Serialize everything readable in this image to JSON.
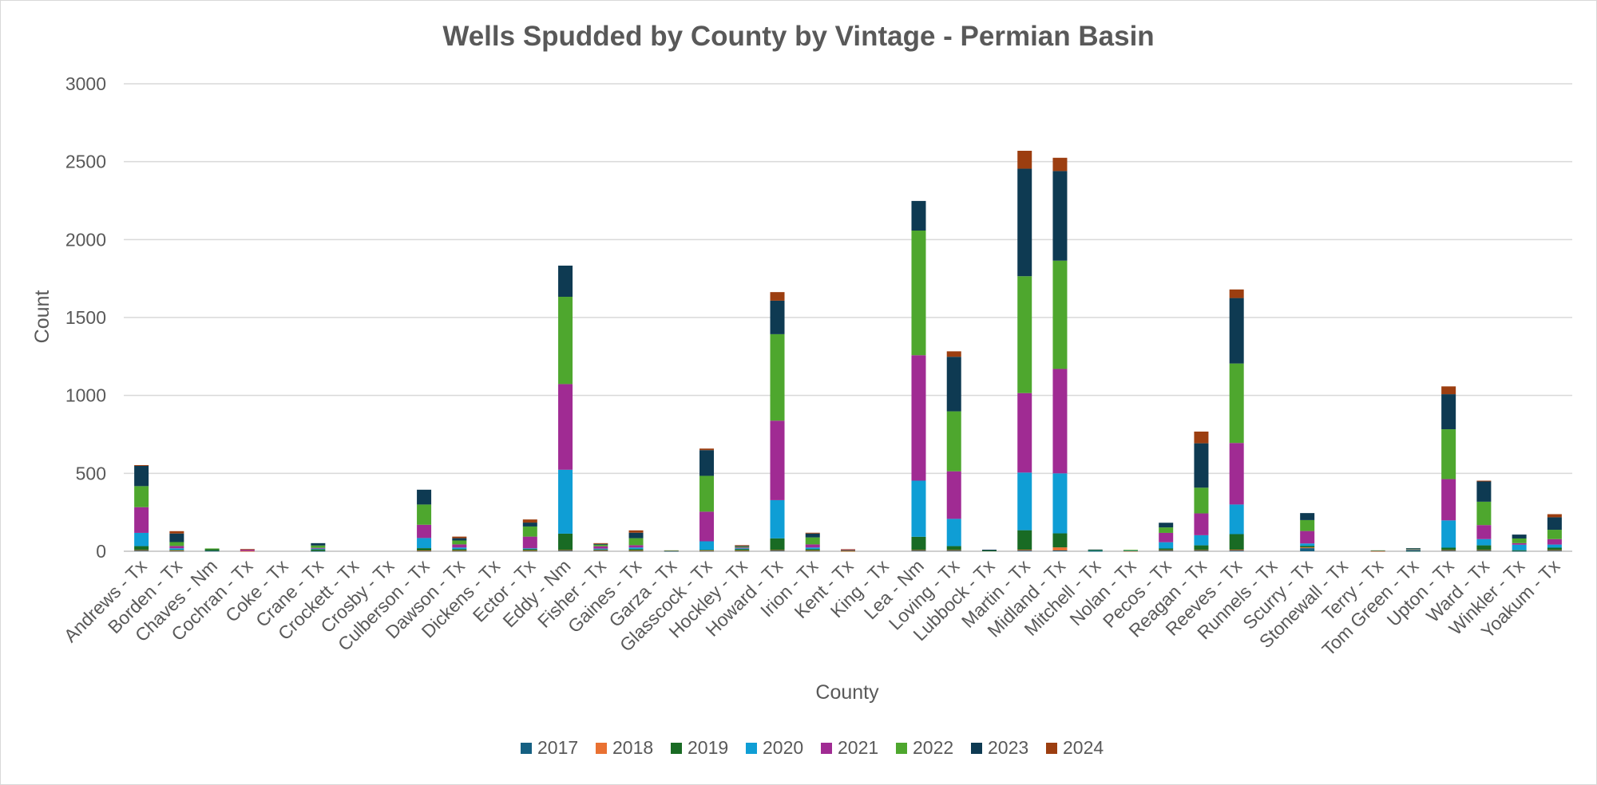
{
  "chart_data": {
    "type": "bar",
    "stacked": true,
    "title": "Wells Spudded by County by Vintage - Permian Basin",
    "xlabel": "County",
    "ylabel": "Count",
    "ylim": [
      0,
      3000
    ],
    "yticks": [
      "0",
      "500",
      "1000",
      "1500",
      "2000",
      "2500",
      "3000"
    ],
    "grid": true,
    "legend_position": "bottom",
    "categories": [
      "Andrews - Tx",
      "Borden - Tx",
      "Chaves - Nm",
      "Cochran - Tx",
      "Coke - Tx",
      "Crane - Tx",
      "Crockett - Tx",
      "Crosby - Tx",
      "Culberson - Tx",
      "Dawson - Tx",
      "Dickens - Tx",
      "Ector - Tx",
      "Eddy - Nm",
      "Fisher - Tx",
      "Gaines - Tx",
      "Garza - Tx",
      "Glasscock - Tx",
      "Hockley - Tx",
      "Howard - Tx",
      "Irion - Tx",
      "Kent - Tx",
      "King - Tx",
      "Lea - Nm",
      "Loving - Tx",
      "Lubbock - Tx",
      "Martin - Tx",
      "Midland - Tx",
      "Mitchell - Tx",
      "Nolan - Tx",
      "Pecos - Tx",
      "Reagan - Tx",
      "Reeves - Tx",
      "Runnels - Tx",
      "Scurry - Tx",
      "Stonewall - Tx",
      "Terry - Tx",
      "Tom Green - Tx",
      "Upton - Tx",
      "Ward - Tx",
      "Winkler - Tx",
      "Yoakum - Tx"
    ],
    "series": [
      {
        "name": "2017",
        "color": "#156082",
        "values": [
          5,
          2,
          3,
          0,
          0,
          2,
          0,
          0,
          2,
          2,
          0,
          2,
          5,
          5,
          2,
          2,
          2,
          2,
          5,
          2,
          0,
          0,
          5,
          5,
          0,
          5,
          5,
          2,
          0,
          5,
          5,
          5,
          0,
          20,
          0,
          0,
          2,
          5,
          5,
          2,
          5
        ]
      },
      {
        "name": "2018",
        "color": "#E97132",
        "values": [
          3,
          2,
          0,
          2,
          0,
          0,
          0,
          0,
          3,
          2,
          0,
          2,
          3,
          2,
          2,
          0,
          2,
          2,
          3,
          2,
          2,
          0,
          3,
          3,
          0,
          5,
          20,
          0,
          2,
          3,
          3,
          5,
          0,
          5,
          0,
          2,
          0,
          3,
          3,
          0,
          3
        ]
      },
      {
        "name": "2019",
        "color": "#196B24",
        "values": [
          25,
          5,
          10,
          0,
          0,
          10,
          0,
          0,
          15,
          10,
          0,
          10,
          105,
          5,
          10,
          0,
          5,
          10,
          75,
          10,
          5,
          0,
          85,
          25,
          5,
          125,
          90,
          3,
          3,
          10,
          30,
          100,
          0,
          10,
          0,
          0,
          5,
          15,
          30,
          5,
          15
        ]
      },
      {
        "name": "2020",
        "color": "#0F9ED5",
        "values": [
          85,
          10,
          0,
          0,
          0,
          5,
          0,
          0,
          65,
          10,
          0,
          5,
          410,
          5,
          10,
          0,
          55,
          5,
          245,
          10,
          0,
          0,
          360,
          175,
          0,
          370,
          385,
          2,
          2,
          40,
          65,
          190,
          0,
          15,
          0,
          0,
          3,
          175,
          40,
          35,
          20
        ]
      },
      {
        "name": "2021",
        "color": "#A02B93",
        "values": [
          165,
          15,
          0,
          10,
          0,
          5,
          0,
          0,
          85,
          20,
          0,
          75,
          550,
          15,
          15,
          2,
          190,
          5,
          510,
          20,
          3,
          0,
          805,
          305,
          0,
          510,
          670,
          0,
          0,
          60,
          140,
          395,
          0,
          80,
          0,
          2,
          2,
          265,
          90,
          10,
          35
        ]
      },
      {
        "name": "2022",
        "color": "#4EA72E",
        "values": [
          135,
          25,
          5,
          0,
          0,
          15,
          0,
          0,
          130,
          25,
          0,
          65,
          560,
          10,
          45,
          2,
          230,
          5,
          555,
          45,
          0,
          0,
          800,
          385,
          0,
          750,
          695,
          2,
          2,
          35,
          165,
          510,
          0,
          70,
          0,
          2,
          5,
          320,
          150,
          30,
          60
        ]
      },
      {
        "name": "2023",
        "color": "#0E3A52",
        "values": [
          130,
          55,
          0,
          0,
          0,
          15,
          0,
          0,
          95,
          15,
          0,
          25,
          200,
          5,
          35,
          0,
          165,
          5,
          215,
          25,
          0,
          0,
          190,
          350,
          5,
          690,
          575,
          2,
          0,
          30,
          285,
          420,
          0,
          45,
          0,
          0,
          3,
          225,
          130,
          25,
          80
        ]
      },
      {
        "name": "2024",
        "color": "#9C3E10",
        "values": [
          5,
          15,
          0,
          2,
          0,
          0,
          0,
          0,
          0,
          10,
          0,
          20,
          0,
          5,
          15,
          0,
          10,
          5,
          55,
          5,
          3,
          0,
          0,
          35,
          0,
          115,
          85,
          0,
          0,
          0,
          75,
          55,
          0,
          0,
          0,
          0,
          0,
          50,
          5,
          0,
          20
        ]
      }
    ]
  }
}
